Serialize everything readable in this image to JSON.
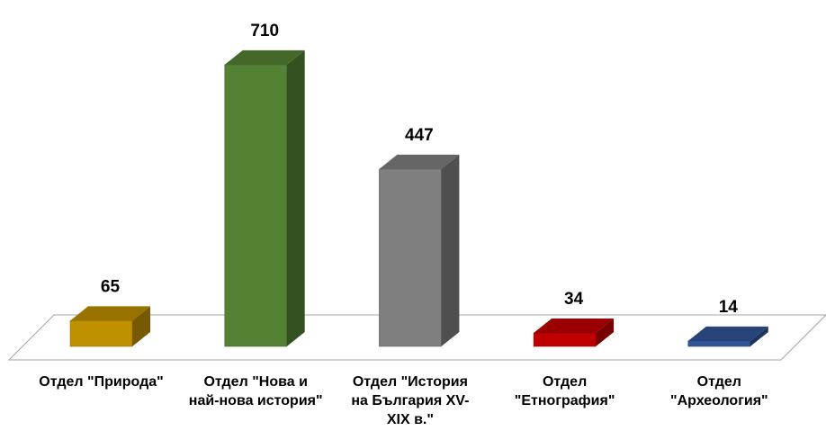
{
  "chart_data": {
    "type": "bar3d",
    "categories": [
      "Отдел \"Природа\"",
      "Отдел \"Нова и най-нова история\"",
      "Отдел \"История на България XV-XIX в.\"",
      "Отдел \"Етнография\"",
      "Отдел \"Археология\""
    ],
    "values": [
      65,
      710,
      447,
      34,
      14
    ],
    "colors": [
      "#bf9000",
      "#548235",
      "#7f7f7f",
      "#c00000",
      "#2f5597"
    ]
  }
}
